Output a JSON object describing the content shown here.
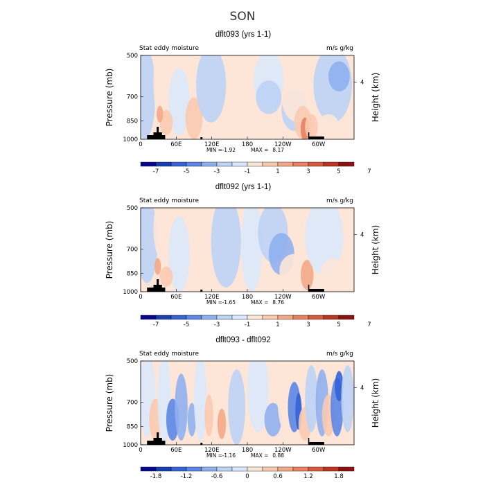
{
  "figure": {
    "season_title": "SON",
    "colors": {
      "scale": [
        "#08088a",
        "#1a3fb0",
        "#3563d6",
        "#5b86e6",
        "#8fb0ef",
        "#bcd3f5",
        "#dbe8fb",
        "#fde6d8",
        "#f9cab0",
        "#f3a888",
        "#e88160",
        "#d65b3e",
        "#bb3522",
        "#8c1410"
      ],
      "terrain": "#000000"
    }
  },
  "chart_data": [
    {
      "type": "heatmap",
      "title": "dflt093 (yrs 1-1)",
      "left_label": "Stat eddy moisture",
      "right_label": "m/s g/kg",
      "ylabel": "Pressure (mb)",
      "y2label": "Height (km)",
      "yticks": [
        "500",
        "700",
        "850",
        "1000"
      ],
      "y2ticks": [
        "4"
      ],
      "xticks": [
        "0",
        "60E",
        "120E",
        "180",
        "120W",
        "60W"
      ],
      "min_label": "MIN =",
      "min_value": "-1.92",
      "max_label": "MAX =",
      "max_value": "8.17",
      "colorbar_ticks": [
        "-7",
        "-5",
        "-3",
        "-1",
        "1",
        "3",
        "5",
        "7"
      ]
    },
    {
      "type": "heatmap",
      "title": "dflt092 (yrs 1-1)",
      "left_label": "Stat eddy moisture",
      "right_label": "m/s g/kg",
      "ylabel": "Pressure (mb)",
      "y2label": "Height (km)",
      "yticks": [
        "500",
        "700",
        "850",
        "1000"
      ],
      "y2ticks": [
        "4"
      ],
      "xticks": [
        "0",
        "60E",
        "120E",
        "180",
        "120W",
        "60W"
      ],
      "min_label": "MIN =",
      "min_value": "-1.65",
      "max_label": "MAX =",
      "max_value": "8.76",
      "colorbar_ticks": [
        "-7",
        "-5",
        "-3",
        "-1",
        "1",
        "3",
        "5",
        "7"
      ]
    },
    {
      "type": "heatmap",
      "title": "dflt093 - dflt092",
      "left_label": "Stat eddy moisture",
      "right_label": "m/s g/kg",
      "ylabel": "Pressure (mb)",
      "y2label": "Height (km)",
      "yticks": [
        "500",
        "700",
        "850",
        "1000"
      ],
      "y2ticks": [
        "4"
      ],
      "xticks": [
        "0",
        "60E",
        "120E",
        "180",
        "120W",
        "60W"
      ],
      "min_label": "MIN =",
      "min_value": "-1.16",
      "max_label": "MAX =",
      "max_value": "0.88",
      "colorbar_ticks": [
        "-1.8",
        "-1.2",
        "-0.6",
        "0",
        "0.6",
        "1.2",
        "1.8"
      ]
    }
  ]
}
